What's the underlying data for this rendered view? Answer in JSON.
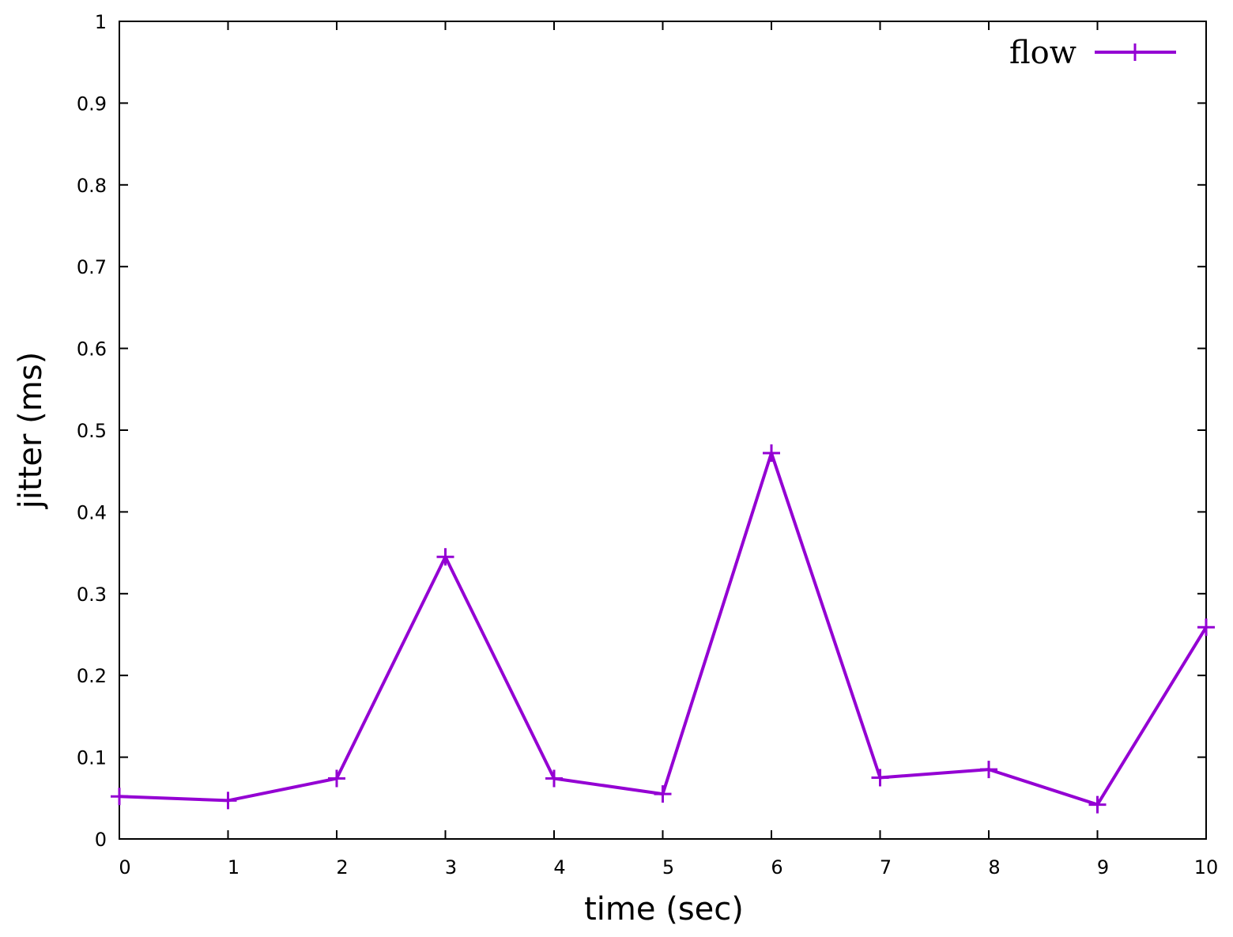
{
  "chart_data": {
    "type": "line",
    "title": "",
    "xlabel": "time (sec)",
    "ylabel": "jitter (ms)",
    "xlim": [
      0,
      10
    ],
    "ylim": [
      0,
      1
    ],
    "xticks": [
      "0",
      "1",
      "2",
      "3",
      "4",
      "5",
      "6",
      "7",
      "8",
      "9",
      "10"
    ],
    "yticks": [
      "0",
      "0.1",
      "0.2",
      "0.3",
      "0.4",
      "0.5",
      "0.6",
      "0.7",
      "0.8",
      "0.9",
      "1"
    ],
    "grid": false,
    "legend_position": "top-right",
    "series": [
      {
        "name": "flow",
        "color": "#9400d3",
        "marker": "plus",
        "x": [
          0,
          1,
          2,
          3,
          4,
          5,
          6,
          7,
          8,
          9,
          10
        ],
        "y": [
          0.052,
          0.047,
          0.074,
          0.345,
          0.074,
          0.055,
          0.472,
          0.075,
          0.085,
          0.042,
          0.259
        ]
      }
    ]
  }
}
